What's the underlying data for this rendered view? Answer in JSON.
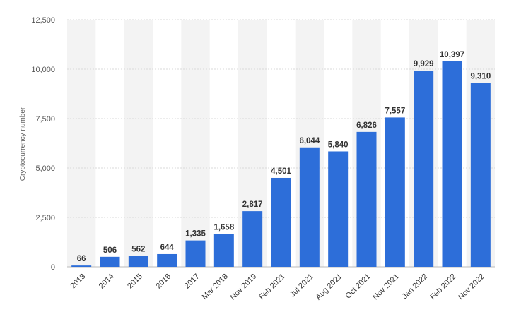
{
  "chart_data": {
    "type": "bar",
    "title": "",
    "xlabel": "",
    "ylabel": "Cryptocurrency number",
    "ylim": [
      0,
      12500
    ],
    "yticks": [
      0,
      2500,
      5000,
      7500,
      10000,
      12500
    ],
    "ytick_labels": [
      "0",
      "2,500",
      "5,000",
      "7,500",
      "10,000",
      "12,500"
    ],
    "grid": true,
    "bar_color": "#2d6ed9",
    "band_color": "#f3f3f3",
    "categories": [
      "2013",
      "2014",
      "2015",
      "2016",
      "2017",
      "Mar 2018",
      "Nov 2019",
      "Feb 2021",
      "Jul 2021",
      "Aug 2021",
      "Oct 2021",
      "Nov 2021",
      "Jan 2022",
      "Feb 2022",
      "Nov 2022"
    ],
    "values": [
      66,
      506,
      562,
      644,
      1335,
      1658,
      2817,
      4501,
      6044,
      5840,
      6826,
      7557,
      9929,
      10397,
      9310
    ],
    "value_labels": [
      "66",
      "506",
      "562",
      "644",
      "1,335",
      "1,658",
      "2,817",
      "4,501",
      "6,044",
      "5,840",
      "6,826",
      "7,557",
      "9,929",
      "10,397",
      "9,310"
    ]
  }
}
